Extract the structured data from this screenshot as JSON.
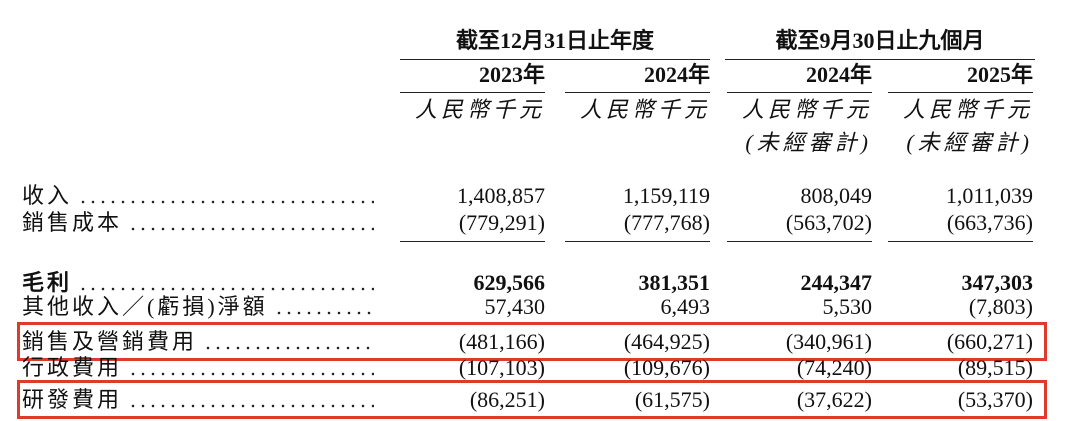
{
  "table": {
    "column_groups": [
      "截至12月31日止年度",
      "截至9月30日止九個月"
    ],
    "years": [
      "2023年",
      "2024年",
      "2024年",
      "2025年"
    ],
    "units": [
      "人民幣千元",
      "人民幣千元",
      "人民幣千元",
      "人民幣千元"
    ],
    "audit_notes": [
      "(未經審計)",
      "(未經審計)"
    ],
    "rows": [
      {
        "label": "收入",
        "values": [
          "1,408,857",
          "1,159,119",
          "808,049",
          "1,011,039"
        ]
      },
      {
        "label": "銷售成本",
        "values": [
          "(779,291)",
          "(777,768)",
          "(563,702)",
          "(663,736)"
        ],
        "underline": true
      },
      {
        "label": "毛利",
        "values": [
          "629,566",
          "381,351",
          "244,347",
          "347,303"
        ],
        "bold": true
      },
      {
        "label": "其他收入／(虧損)淨額",
        "values": [
          "57,430",
          "6,493",
          "5,530",
          "(7,803)"
        ]
      },
      {
        "label": "銷售及營銷費用",
        "values": [
          "(481,166)",
          "(464,925)",
          "(340,961)",
          "(660,271)"
        ],
        "highlighted": true
      },
      {
        "label": "行政費用",
        "values": [
          "(107,103)",
          "(109,676)",
          "(74,240)",
          "(89,515)"
        ]
      },
      {
        "label": "研發費用",
        "values": [
          "(86,251)",
          "(61,575)",
          "(37,622)",
          "(53,370)"
        ],
        "highlighted": true
      }
    ]
  }
}
